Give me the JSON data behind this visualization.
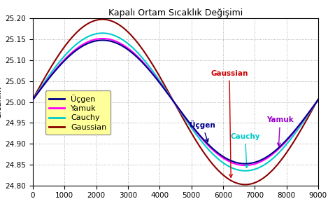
{
  "title": "Kapalı Ortam Sıcaklık Değişimi",
  "ylabel": "Sıcaklık",
  "xlabel": "",
  "xlim": [
    0,
    9000
  ],
  "ylim": [
    24.8,
    25.2
  ],
  "yticks": [
    24.8,
    24.85,
    24.9,
    24.95,
    25.0,
    25.05,
    25.1,
    25.15,
    25.2
  ],
  "xticks": [
    0,
    1000,
    2000,
    3000,
    4000,
    5000,
    6000,
    7000,
    8000,
    9000
  ],
  "colors": {
    "Ucgen": "#00008B",
    "Yamuk": "#FF00FF",
    "Cauchy": "#00CCCC",
    "Gaussian": "#8B0000"
  },
  "legend_labels": [
    "Üçgen",
    "Yamuk",
    "Cauchy",
    "Gaussian"
  ],
  "annotation_colors": {
    "Ucgen": "#00008B",
    "Yamuk": "#9900CC",
    "Cauchy": "#00CCCC",
    "Gaussian": "#CC0000"
  },
  "background_color": "#ffffff",
  "legend_bg": "#FFFF99",
  "grid_color": "#888888",
  "n_points": 1000,
  "base_temp": 25.0,
  "amplitudes": {
    "Ucgen": 0.148,
    "Yamuk": 0.152,
    "Cauchy": 0.165,
    "Gaussian": 0.198
  },
  "phase_shift": 2200,
  "period": 9000,
  "figwidth": 4.69,
  "figheight": 2.94,
  "dpi": 100
}
